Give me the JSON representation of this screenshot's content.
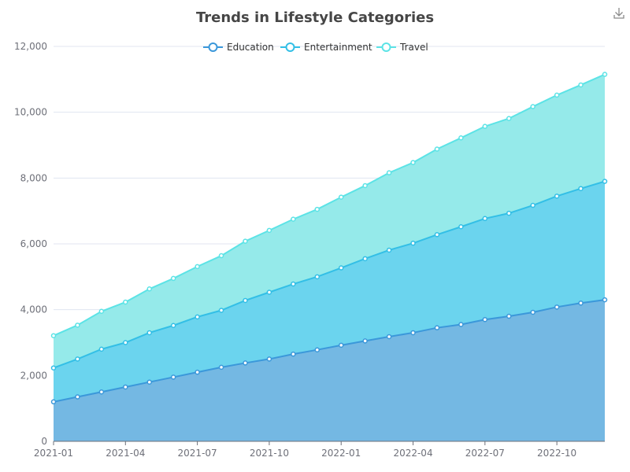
{
  "toolbox": {
    "save_icon": "download-icon"
  },
  "chart_data": {
    "type": "area",
    "stacked": true,
    "title": "Trends in Lifestyle Categories",
    "xlabel": "",
    "ylabel": "",
    "x": [
      "2021-01",
      "2021-02",
      "2021-03",
      "2021-04",
      "2021-05",
      "2021-06",
      "2021-07",
      "2021-08",
      "2021-09",
      "2021-10",
      "2021-11",
      "2021-12",
      "2022-01",
      "2022-02",
      "2022-03",
      "2022-04",
      "2022-05",
      "2022-06",
      "2022-07",
      "2022-08",
      "2022-09",
      "2022-10",
      "2022-11",
      "2022-12"
    ],
    "x_tick_labels": [
      "2021-01",
      "2021-04",
      "2021-07",
      "2021-10",
      "2022-01",
      "2022-04",
      "2022-07",
      "2022-10"
    ],
    "y_tick_labels": [
      "0",
      "2,000",
      "4,000",
      "6,000",
      "8,000",
      "10,000",
      "12,000"
    ],
    "ylim": [
      0,
      12000
    ],
    "grid": true,
    "legend_position": "top-center",
    "series": [
      {
        "name": "Education",
        "color": "#3b98da",
        "area_color": "#74b8e3",
        "values": [
          1200,
          1350,
          1500,
          1650,
          1800,
          1950,
          2100,
          2250,
          2380,
          2500,
          2650,
          2780,
          2920,
          3050,
          3180,
          3300,
          3450,
          3550,
          3700,
          3800,
          3920,
          4080,
          4200,
          4300
        ]
      },
      {
        "name": "Entertainment",
        "color": "#33bfe6",
        "area_color": "#6bd4ee",
        "values": [
          1030,
          1150,
          1300,
          1350,
          1500,
          1570,
          1680,
          1730,
          1900,
          2030,
          2130,
          2220,
          2350,
          2500,
          2630,
          2720,
          2830,
          2970,
          3070,
          3130,
          3250,
          3370,
          3480,
          3600
        ]
      },
      {
        "name": "Travel",
        "color": "#5ce3e6",
        "area_color": "#95eaea",
        "values": [
          980,
          1030,
          1150,
          1230,
          1330,
          1430,
          1530,
          1660,
          1800,
          1880,
          1970,
          2050,
          2150,
          2220,
          2350,
          2450,
          2600,
          2700,
          2800,
          2880,
          3000,
          3070,
          3150,
          3250
        ]
      }
    ]
  }
}
